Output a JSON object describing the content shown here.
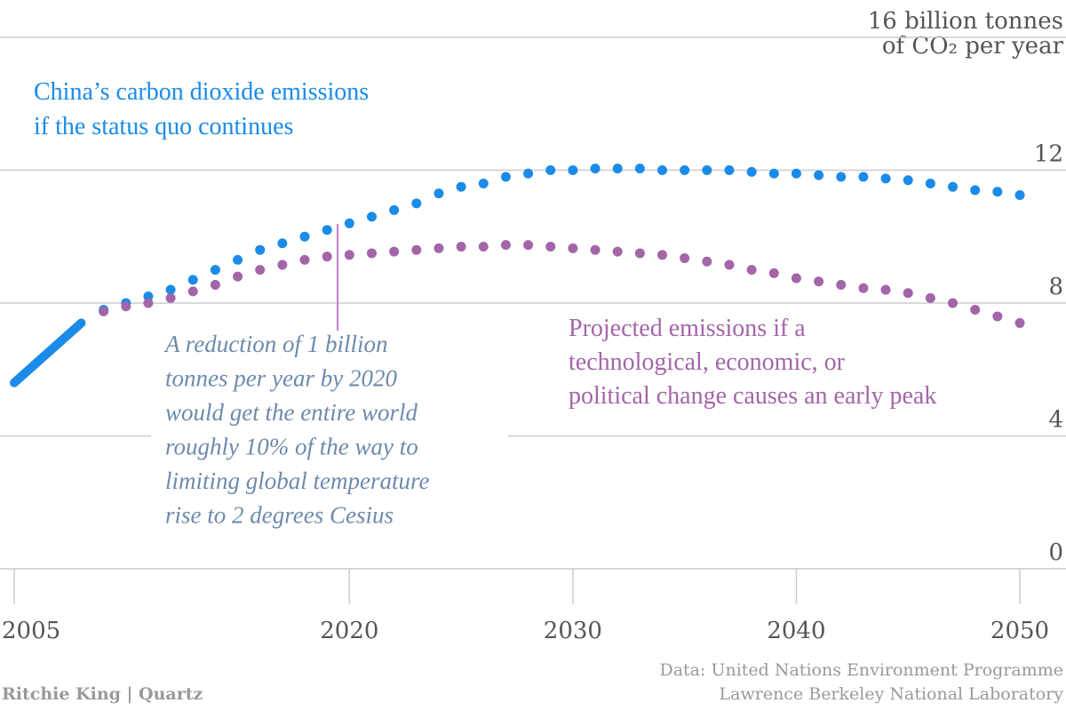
{
  "chart_data": {
    "type": "line",
    "x": [
      2005,
      2006,
      2007,
      2008,
      2009,
      2010,
      2011,
      2012,
      2013,
      2014,
      2015,
      2016,
      2017,
      2018,
      2019,
      2020,
      2021,
      2022,
      2023,
      2024,
      2025,
      2026,
      2027,
      2028,
      2029,
      2030,
      2031,
      2032,
      2033,
      2034,
      2035,
      2036,
      2037,
      2038,
      2039,
      2040,
      2041,
      2042,
      2043,
      2044,
      2045,
      2046,
      2047,
      2048,
      2049,
      2050
    ],
    "xlim": [
      2005,
      2050
    ],
    "xticks": [
      2005,
      2020,
      2030,
      2040,
      2050
    ],
    "ylim": [
      0,
      16
    ],
    "yticks": [
      0,
      4,
      8,
      12,
      {
        "value": 16,
        "label": "16 billion tonnes"
      }
    ],
    "y_label": "of CO₂ per year",
    "grid": true,
    "series": [
      {
        "color": "#1a8be8",
        "style": "solid",
        "values": [
          5.6,
          6.2,
          6.8,
          7.4,
          null,
          null,
          null,
          null,
          null,
          null,
          null,
          null,
          null,
          null,
          null,
          null,
          null,
          null,
          null,
          null,
          null,
          null,
          null,
          null,
          null,
          null,
          null,
          null,
          null,
          null,
          null,
          null,
          null,
          null,
          null,
          null,
          null,
          null,
          null,
          null,
          null,
          null,
          null,
          null,
          null,
          null
        ]
      },
      {
        "color": "#1a8be8",
        "style": "dotted",
        "values": [
          null,
          null,
          null,
          null,
          7.8,
          8.0,
          8.2,
          8.4,
          8.7,
          9.0,
          9.3,
          9.6,
          9.8,
          10.0,
          10.2,
          10.4,
          10.6,
          10.8,
          11.0,
          11.3,
          11.5,
          11.6,
          11.8,
          11.9,
          12.0,
          12.0,
          12.05,
          12.05,
          12.05,
          12.0,
          12.0,
          12.0,
          12.0,
          11.95,
          11.9,
          11.9,
          11.85,
          11.8,
          11.8,
          11.75,
          11.7,
          11.6,
          11.5,
          11.4,
          11.35,
          11.25
        ]
      },
      {
        "color": "#a365a8",
        "style": "dotted",
        "values": [
          null,
          null,
          null,
          null,
          7.75,
          7.9,
          8.0,
          8.15,
          8.35,
          8.55,
          8.8,
          9.0,
          9.15,
          9.3,
          9.4,
          9.45,
          9.5,
          9.55,
          9.6,
          9.65,
          9.7,
          9.7,
          9.75,
          9.75,
          9.7,
          9.65,
          9.6,
          9.55,
          9.5,
          9.45,
          9.35,
          9.25,
          9.15,
          9.0,
          8.9,
          8.75,
          8.65,
          8.55,
          8.45,
          8.4,
          8.3,
          8.15,
          8.0,
          7.8,
          7.6,
          7.4
        ]
      }
    ],
    "annotations": [
      {
        "color": "#1a8be8",
        "lines": [
          "China’s carbon dioxide emissions",
          "if the status quo continues"
        ]
      },
      {
        "color": "#6d8aab",
        "lines": [
          "A reduction of 1 billion",
          "tonnes per year by 2020",
          "would get the entire world",
          "roughly 10% of the way to",
          "limiting global temperature",
          "rise to 2 degrees Cesius"
        ]
      },
      {
        "color": "#a365a8",
        "lines": [
          "Projected emissions if a",
          "technological, economic, or",
          "political change causes an early peak"
        ]
      }
    ],
    "credit": "Ritchie King | Quartz",
    "source": [
      "Data: United Nations Environment Programme",
      "Lawrence Berkeley National Laboratory"
    ]
  }
}
